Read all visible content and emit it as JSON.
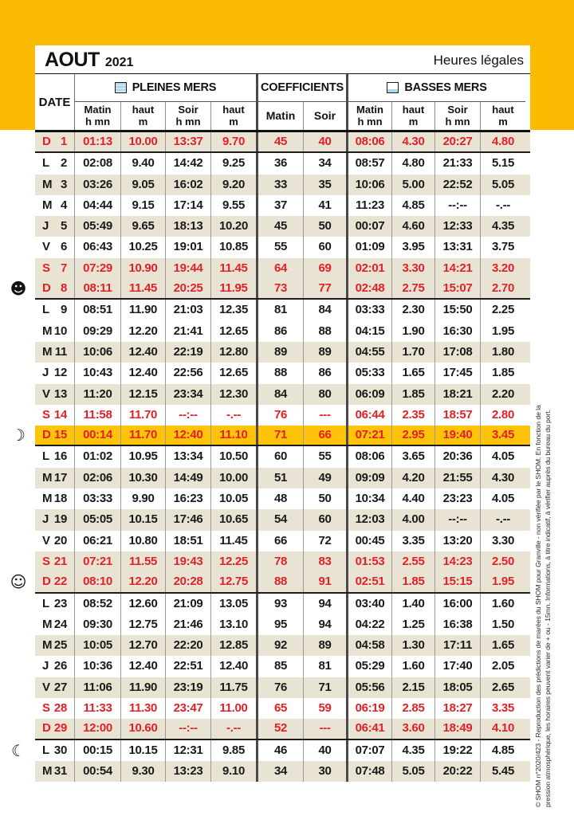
{
  "header": {
    "month": "AOUT",
    "year": "2021",
    "legal_hours": "Heures légales"
  },
  "columns": {
    "date": "DATE",
    "pleines_mers": "PLEINES MERS",
    "coefficients": "COEFFICIENTS",
    "basses_mers": "BASSES MERS",
    "matin": "Matin",
    "soir": "Soir",
    "haut": "haut",
    "h_mn": "h mn",
    "m": "m"
  },
  "colors": {
    "band_yellow": "#fbbb02",
    "highlight_gold": "#ffc30b",
    "row_beige": "#e9e3d3",
    "weekend_red": "#e02128",
    "text_black": "#1a1a1a"
  },
  "icons": {
    "high-tide-icon": "filled water square",
    "low-tide-icon": "low water square",
    "moon_glyphs": {
      "new-moon": "☻",
      "first-quarter-moon": "☽",
      "full-moon": "☺",
      "last-quarter-moon": "☾"
    }
  },
  "footer": {
    "line1": "© SHOM n°2020/423 - Reproduction des prédictions de marées du SHOM pour Granville - non vérifiée par le SHOM. En fonction de la",
    "line2": "pression atmosphérique, les horaires peuvent varier de + ou - 15mn. Informations, à titre indicatif, à vérifier auprès du bureau du port."
  },
  "table": {
    "rows": [
      {
        "day": "D",
        "num": "1",
        "red": true,
        "shade": "beige",
        "sep": true,
        "moon": null,
        "cells": [
          "01:13",
          "10.00",
          "13:37",
          "9.70",
          "45",
          "40",
          "08:06",
          "4.30",
          "20:27",
          "4.80"
        ]
      },
      {
        "day": "L",
        "num": "2",
        "red": false,
        "shade": "white",
        "sep": false,
        "moon": null,
        "cells": [
          "02:08",
          "9.40",
          "14:42",
          "9.25",
          "36",
          "34",
          "08:57",
          "4.80",
          "21:33",
          "5.15"
        ]
      },
      {
        "day": "M",
        "num": "3",
        "red": false,
        "shade": "beige",
        "sep": false,
        "moon": null,
        "cells": [
          "03:26",
          "9.05",
          "16:02",
          "9.20",
          "33",
          "35",
          "10:06",
          "5.00",
          "22:52",
          "5.05"
        ]
      },
      {
        "day": "M",
        "num": "4",
        "red": false,
        "shade": "white",
        "sep": false,
        "moon": null,
        "cells": [
          "04:44",
          "9.15",
          "17:14",
          "9.55",
          "37",
          "41",
          "11:23",
          "4.85",
          "--:--",
          "-.--"
        ]
      },
      {
        "day": "J",
        "num": "5",
        "red": false,
        "shade": "beige",
        "sep": false,
        "moon": null,
        "cells": [
          "05:49",
          "9.65",
          "18:13",
          "10.20",
          "45",
          "50",
          "00:07",
          "4.60",
          "12:33",
          "4.35"
        ]
      },
      {
        "day": "V",
        "num": "6",
        "red": false,
        "shade": "white",
        "sep": false,
        "moon": null,
        "cells": [
          "06:43",
          "10.25",
          "19:01",
          "10.85",
          "55",
          "60",
          "01:09",
          "3.95",
          "13:31",
          "3.75"
        ]
      },
      {
        "day": "S",
        "num": "7",
        "red": true,
        "shade": "beige",
        "sep": false,
        "moon": null,
        "cells": [
          "07:29",
          "10.90",
          "19:44",
          "11.45",
          "64",
          "69",
          "02:01",
          "3.30",
          "14:21",
          "3.20"
        ]
      },
      {
        "day": "D",
        "num": "8",
        "red": true,
        "shade": "beige",
        "sep": true,
        "moon": "new-moon",
        "cells": [
          "08:11",
          "11.45",
          "20:25",
          "11.95",
          "73",
          "77",
          "02:48",
          "2.75",
          "15:07",
          "2.70"
        ]
      },
      {
        "day": "L",
        "num": "9",
        "red": false,
        "shade": "white",
        "sep": false,
        "moon": null,
        "cells": [
          "08:51",
          "11.90",
          "21:03",
          "12.35",
          "81",
          "84",
          "03:33",
          "2.30",
          "15:50",
          "2.25"
        ]
      },
      {
        "day": "M",
        "num": "10",
        "red": false,
        "shade": "white",
        "sep": false,
        "moon": null,
        "cells": [
          "09:29",
          "12.20",
          "21:41",
          "12.65",
          "86",
          "88",
          "04:15",
          "1.90",
          "16:30",
          "1.95"
        ]
      },
      {
        "day": "M",
        "num": "11",
        "red": false,
        "shade": "beige",
        "sep": false,
        "moon": null,
        "cells": [
          "10:06",
          "12.40",
          "22:19",
          "12.80",
          "89",
          "89",
          "04:55",
          "1.70",
          "17:08",
          "1.80"
        ]
      },
      {
        "day": "J",
        "num": "12",
        "red": false,
        "shade": "white",
        "sep": false,
        "moon": null,
        "cells": [
          "10:43",
          "12.40",
          "22:56",
          "12.65",
          "88",
          "86",
          "05:33",
          "1.65",
          "17:45",
          "1.85"
        ]
      },
      {
        "day": "V",
        "num": "13",
        "red": false,
        "shade": "beige",
        "sep": false,
        "moon": null,
        "cells": [
          "11:20",
          "12.15",
          "23:34",
          "12.30",
          "84",
          "80",
          "06:09",
          "1.85",
          "18:21",
          "2.20"
        ]
      },
      {
        "day": "S",
        "num": "14",
        "red": true,
        "shade": "white",
        "sep": false,
        "moon": null,
        "cells": [
          "11:58",
          "11.70",
          "--:--",
          "-.--",
          "76",
          "---",
          "06:44",
          "2.35",
          "18:57",
          "2.80"
        ]
      },
      {
        "day": "D",
        "num": "15",
        "red": true,
        "shade": "gold",
        "sep": true,
        "moon": "first-quarter-moon",
        "cells": [
          "00:14",
          "11.70",
          "12:40",
          "11.10",
          "71",
          "66",
          "07:21",
          "2.95",
          "19:40",
          "3.45"
        ]
      },
      {
        "day": "L",
        "num": "16",
        "red": false,
        "shade": "white",
        "sep": false,
        "moon": null,
        "cells": [
          "01:02",
          "10.95",
          "13:34",
          "10.50",
          "60",
          "55",
          "08:06",
          "3.65",
          "20:36",
          "4.05"
        ]
      },
      {
        "day": "M",
        "num": "17",
        "red": false,
        "shade": "beige",
        "sep": false,
        "moon": null,
        "cells": [
          "02:06",
          "10.30",
          "14:49",
          "10.00",
          "51",
          "49",
          "09:09",
          "4.20",
          "21:55",
          "4.30"
        ]
      },
      {
        "day": "M",
        "num": "18",
        "red": false,
        "shade": "white",
        "sep": false,
        "moon": null,
        "cells": [
          "03:33",
          "9.90",
          "16:23",
          "10.05",
          "48",
          "50",
          "10:34",
          "4.40",
          "23:23",
          "4.05"
        ]
      },
      {
        "day": "J",
        "num": "19",
        "red": false,
        "shade": "beige",
        "sep": false,
        "moon": null,
        "cells": [
          "05:05",
          "10.15",
          "17:46",
          "10.65",
          "54",
          "60",
          "12:03",
          "4.00",
          "--:--",
          "-.--"
        ]
      },
      {
        "day": "V",
        "num": "20",
        "red": false,
        "shade": "white",
        "sep": false,
        "moon": null,
        "cells": [
          "06:21",
          "10.80",
          "18:51",
          "11.45",
          "66",
          "72",
          "00:45",
          "3.35",
          "13:20",
          "3.30"
        ]
      },
      {
        "day": "S",
        "num": "21",
        "red": true,
        "shade": "beige",
        "sep": false,
        "moon": null,
        "cells": [
          "07:21",
          "11.55",
          "19:43",
          "12.25",
          "78",
          "83",
          "01:53",
          "2.55",
          "14:23",
          "2.50"
        ]
      },
      {
        "day": "D",
        "num": "22",
        "red": true,
        "shade": "beige",
        "sep": true,
        "moon": "full-moon",
        "cells": [
          "08:10",
          "12.20",
          "20:28",
          "12.75",
          "88",
          "91",
          "02:51",
          "1.85",
          "15:15",
          "1.95"
        ]
      },
      {
        "day": "L",
        "num": "23",
        "red": false,
        "shade": "white",
        "sep": false,
        "moon": null,
        "cells": [
          "08:52",
          "12.60",
          "21:09",
          "13.05",
          "93",
          "94",
          "03:40",
          "1.40",
          "16:00",
          "1.60"
        ]
      },
      {
        "day": "M",
        "num": "24",
        "red": false,
        "shade": "white",
        "sep": false,
        "moon": null,
        "cells": [
          "09:30",
          "12.75",
          "21:46",
          "13.10",
          "95",
          "94",
          "04:22",
          "1.25",
          "16:38",
          "1.50"
        ]
      },
      {
        "day": "M",
        "num": "25",
        "red": false,
        "shade": "beige",
        "sep": false,
        "moon": null,
        "cells": [
          "10:05",
          "12.70",
          "22:20",
          "12.85",
          "92",
          "89",
          "04:58",
          "1.30",
          "17:11",
          "1.65"
        ]
      },
      {
        "day": "J",
        "num": "26",
        "red": false,
        "shade": "white",
        "sep": false,
        "moon": null,
        "cells": [
          "10:36",
          "12.40",
          "22:51",
          "12.40",
          "85",
          "81",
          "05:29",
          "1.60",
          "17:40",
          "2.05"
        ]
      },
      {
        "day": "V",
        "num": "27",
        "red": false,
        "shade": "beige",
        "sep": false,
        "moon": null,
        "cells": [
          "11:06",
          "11.90",
          "23:19",
          "11.75",
          "76",
          "71",
          "05:56",
          "2.15",
          "18:05",
          "2.65"
        ]
      },
      {
        "day": "S",
        "num": "28",
        "red": true,
        "shade": "white",
        "sep": false,
        "moon": null,
        "cells": [
          "11:33",
          "11.30",
          "23:47",
          "11.00",
          "65",
          "59",
          "06:19",
          "2.85",
          "18:27",
          "3.35"
        ]
      },
      {
        "day": "D",
        "num": "29",
        "red": true,
        "shade": "beige",
        "sep": true,
        "moon": null,
        "cells": [
          "12:00",
          "10.60",
          "--:--",
          "-.--",
          "52",
          "---",
          "06:41",
          "3.60",
          "18:49",
          "4.10"
        ]
      },
      {
        "day": "L",
        "num": "30",
        "red": false,
        "shade": "white",
        "sep": false,
        "moon": "last-quarter-moon",
        "cells": [
          "00:15",
          "10.15",
          "12:31",
          "9.85",
          "46",
          "40",
          "07:07",
          "4.35",
          "19:22",
          "4.85"
        ]
      },
      {
        "day": "M",
        "num": "31",
        "red": false,
        "shade": "beige",
        "sep": false,
        "moon": null,
        "cells": [
          "00:54",
          "9.30",
          "13:23",
          "9.10",
          "34",
          "30",
          "07:48",
          "5.05",
          "20:22",
          "5.45"
        ]
      }
    ]
  }
}
